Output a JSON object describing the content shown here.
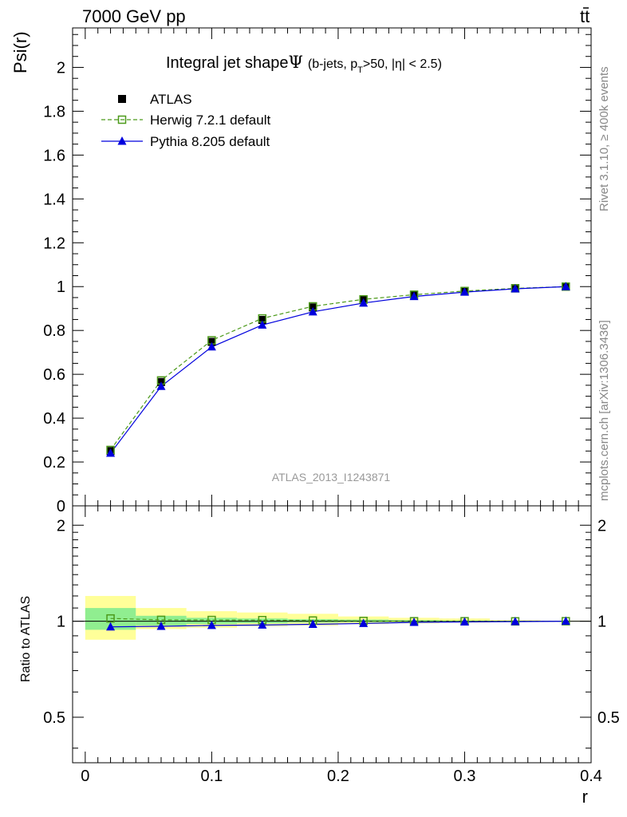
{
  "header": {
    "left": "7000 GeV pp",
    "right_t": "t",
    "right_tbar": "t"
  },
  "side_labels": {
    "rivet": "Rivet 3.1.10, ≥ 400k events",
    "mcplots": "mcplots.cern.ch [arXiv:1306.3436]"
  },
  "watermark": "ATLAS_2013_I1243871",
  "chart_data": [
    {
      "type": "line",
      "title": "Integral jet shape",
      "title_symbol": "Ψ",
      "subtitle_parts": {
        "pre": "(b-jets, p",
        "sub": "T",
        "post": ">50, |η| < 2.5)"
      },
      "xlabel": "r",
      "ylabel": "Psi(r)",
      "xlim": [
        -0.01,
        0.4
      ],
      "ylim": [
        0,
        2.18
      ],
      "y_ticks": [
        "0",
        "0.2",
        "0.4",
        "0.6",
        "0.8",
        "1",
        "1.2",
        "1.4",
        "1.6",
        "1.8",
        "2"
      ],
      "x": [
        0.02,
        0.06,
        0.1,
        0.14,
        0.18,
        0.22,
        0.26,
        0.3,
        0.34,
        0.38
      ],
      "series": [
        {
          "name": "ATLAS",
          "marker": "filled-square",
          "color": "#000000",
          "values": [
            0.25,
            0.565,
            0.748,
            0.848,
            0.905,
            0.94,
            0.963,
            0.98,
            0.993,
            1.0
          ]
        },
        {
          "name": "Herwig 7.2.1 default",
          "marker": "open-square",
          "line": "dashed",
          "color": "#4c9a1a",
          "values": [
            0.255,
            0.572,
            0.755,
            0.855,
            0.91,
            0.942,
            0.963,
            0.98,
            0.992,
            1.0
          ]
        },
        {
          "name": "Pythia 8.205 default",
          "marker": "triangle",
          "line": "solid",
          "color": "#0000dd",
          "values": [
            0.24,
            0.545,
            0.725,
            0.825,
            0.885,
            0.925,
            0.955,
            0.975,
            0.99,
            1.0
          ]
        }
      ]
    },
    {
      "type": "line",
      "ylabel": "Ratio to ATLAS",
      "xlabel": "r",
      "ylim": [
        0.36,
        2.3
      ],
      "y_scale": "log",
      "y_ticks": [
        "0.5",
        "1",
        "2"
      ],
      "x_ticks": [
        "0",
        "0.1",
        "0.2",
        "0.3",
        "0.4"
      ],
      "x": [
        0.02,
        0.06,
        0.1,
        0.14,
        0.18,
        0.22,
        0.26,
        0.3,
        0.34,
        0.38
      ],
      "bands": {
        "bin_edges": [
          0.0,
          0.04,
          0.08,
          0.12,
          0.16,
          0.2,
          0.24,
          0.28,
          0.32,
          0.36,
          0.4
        ],
        "stat": [
          [
            0.94,
            1.1
          ],
          [
            0.97,
            1.04
          ],
          [
            0.98,
            1.025
          ],
          [
            0.985,
            1.02
          ],
          [
            0.99,
            1.015
          ],
          [
            0.993,
            1.012
          ],
          [
            0.995,
            1.008
          ],
          [
            0.997,
            1.005
          ],
          [
            0.998,
            1.003
          ],
          [
            0.999,
            1.002
          ]
        ],
        "total": [
          [
            0.875,
            1.2
          ],
          [
            0.945,
            1.1
          ],
          [
            0.955,
            1.075
          ],
          [
            0.965,
            1.065
          ],
          [
            0.97,
            1.055
          ],
          [
            0.98,
            1.035
          ],
          [
            0.985,
            1.025
          ],
          [
            0.99,
            1.02
          ],
          [
            0.995,
            1.008
          ],
          [
            0.998,
            1.004
          ]
        ],
        "stat_color": "#90ee90",
        "total_color": "#ffff99"
      },
      "series": [
        {
          "name": "Herwig 7.2.1 default",
          "marker": "open-square",
          "line": "dashed",
          "color": "#4c9a1a",
          "values": [
            1.02,
            1.01,
            1.009,
            1.008,
            1.005,
            1.002,
            1.0,
            1.0,
            0.999,
            1.0
          ]
        },
        {
          "name": "Pythia 8.205 default",
          "marker": "triangle",
          "line": "solid",
          "color": "#0000dd",
          "values": [
            0.96,
            0.964,
            0.97,
            0.973,
            0.978,
            0.984,
            0.992,
            0.995,
            0.997,
            1.0
          ]
        }
      ]
    }
  ]
}
